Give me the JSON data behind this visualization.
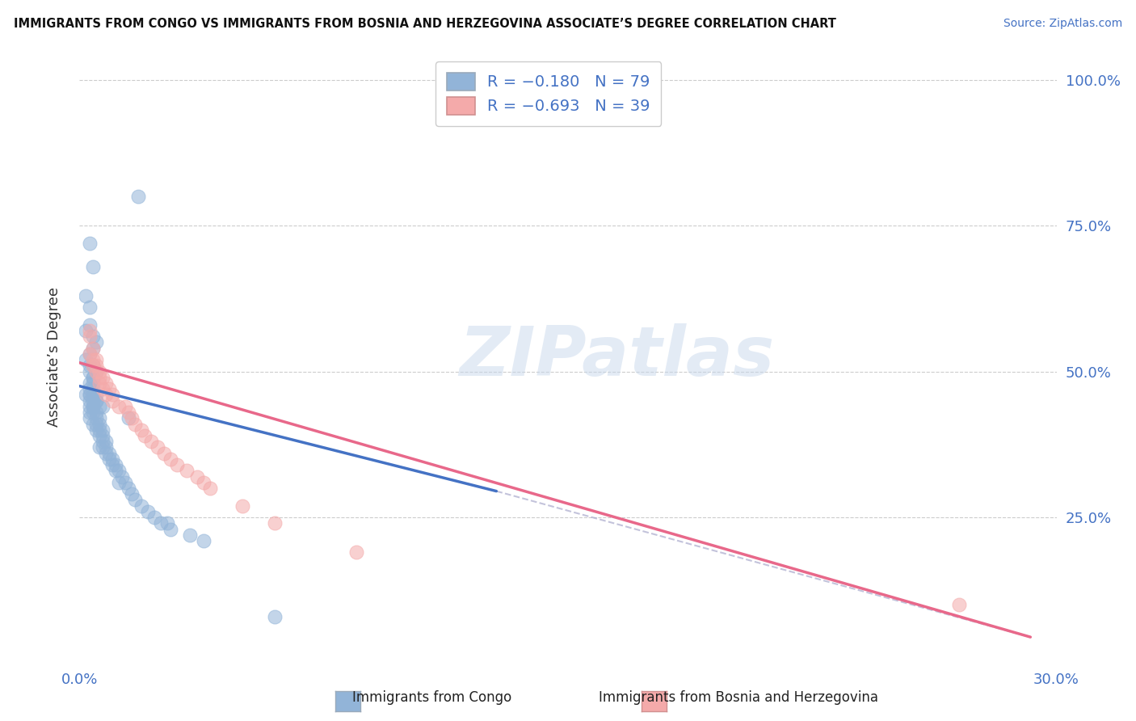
{
  "title": "IMMIGRANTS FROM CONGO VS IMMIGRANTS FROM BOSNIA AND HERZEGOVINA ASSOCIATE’S DEGREE CORRELATION CHART",
  "source": "Source: ZipAtlas.com",
  "ylabel": "Associate’s Degree",
  "xlim": [
    0.0,
    0.3
  ],
  "ylim": [
    0.0,
    1.05
  ],
  "ytick_positions": [
    0.25,
    0.5,
    0.75,
    1.0
  ],
  "ytick_labels": [
    "25.0%",
    "50.0%",
    "75.0%",
    "100.0%"
  ],
  "xtick_positions": [
    0.0,
    0.3
  ],
  "xtick_labels": [
    "0.0%",
    "30.0%"
  ],
  "legend1_label": "R = −0.180   N = 79",
  "legend2_label": "R = −0.693   N = 39",
  "legend_bottom1": "Immigrants from Congo",
  "legend_bottom2": "Immigrants from Bosnia and Herzegovina",
  "blue_color": "#92B4D8",
  "pink_color": "#F4AAAA",
  "blue_edge_color": "#7090C0",
  "pink_edge_color": "#E08888",
  "blue_line_color": "#4472C4",
  "pink_line_color": "#E8688A",
  "dash_color": "#AAAACC",
  "watermark_text": "ZIPatlas",
  "blue_scatter_x": [
    0.018,
    0.003,
    0.004,
    0.002,
    0.003,
    0.003,
    0.002,
    0.004,
    0.005,
    0.004,
    0.003,
    0.002,
    0.003,
    0.004,
    0.005,
    0.003,
    0.004,
    0.004,
    0.003,
    0.004,
    0.004,
    0.003,
    0.005,
    0.003,
    0.002,
    0.003,
    0.003,
    0.004,
    0.005,
    0.004,
    0.003,
    0.004,
    0.003,
    0.005,
    0.004,
    0.003,
    0.006,
    0.005,
    0.004,
    0.006,
    0.005,
    0.007,
    0.006,
    0.005,
    0.007,
    0.006,
    0.008,
    0.007,
    0.006,
    0.008,
    0.007,
    0.009,
    0.008,
    0.01,
    0.009,
    0.011,
    0.01,
    0.012,
    0.011,
    0.013,
    0.012,
    0.014,
    0.015,
    0.016,
    0.017,
    0.019,
    0.021,
    0.023,
    0.025,
    0.027,
    0.028,
    0.034,
    0.038,
    0.004,
    0.005,
    0.006,
    0.007,
    0.015,
    0.06
  ],
  "blue_scatter_y": [
    0.8,
    0.72,
    0.68,
    0.63,
    0.61,
    0.58,
    0.57,
    0.56,
    0.55,
    0.54,
    0.53,
    0.52,
    0.51,
    0.51,
    0.5,
    0.5,
    0.49,
    0.49,
    0.48,
    0.48,
    0.47,
    0.47,
    0.46,
    0.46,
    0.46,
    0.46,
    0.45,
    0.45,
    0.45,
    0.44,
    0.44,
    0.44,
    0.43,
    0.43,
    0.43,
    0.42,
    0.42,
    0.42,
    0.41,
    0.41,
    0.41,
    0.4,
    0.4,
    0.4,
    0.39,
    0.39,
    0.38,
    0.38,
    0.37,
    0.37,
    0.37,
    0.36,
    0.36,
    0.35,
    0.35,
    0.34,
    0.34,
    0.33,
    0.33,
    0.32,
    0.31,
    0.31,
    0.3,
    0.29,
    0.28,
    0.27,
    0.26,
    0.25,
    0.24,
    0.24,
    0.23,
    0.22,
    0.21,
    0.46,
    0.45,
    0.44,
    0.44,
    0.42,
    0.08
  ],
  "pink_scatter_x": [
    0.003,
    0.003,
    0.004,
    0.003,
    0.004,
    0.005,
    0.004,
    0.005,
    0.006,
    0.005,
    0.006,
    0.007,
    0.006,
    0.008,
    0.007,
    0.009,
    0.008,
    0.01,
    0.01,
    0.012,
    0.014,
    0.015,
    0.016,
    0.017,
    0.019,
    0.02,
    0.022,
    0.024,
    0.026,
    0.028,
    0.03,
    0.033,
    0.036,
    0.038,
    0.04,
    0.05,
    0.06,
    0.085,
    0.27
  ],
  "pink_scatter_y": [
    0.57,
    0.56,
    0.54,
    0.53,
    0.52,
    0.52,
    0.51,
    0.51,
    0.5,
    0.5,
    0.49,
    0.49,
    0.48,
    0.48,
    0.47,
    0.47,
    0.46,
    0.46,
    0.45,
    0.44,
    0.44,
    0.43,
    0.42,
    0.41,
    0.4,
    0.39,
    0.38,
    0.37,
    0.36,
    0.35,
    0.34,
    0.33,
    0.32,
    0.31,
    0.3,
    0.27,
    0.24,
    0.19,
    0.1
  ],
  "blue_line_x": [
    0.0,
    0.128
  ],
  "blue_line_y": [
    0.475,
    0.295
  ],
  "pink_line_x": [
    0.0,
    0.292
  ],
  "pink_line_y": [
    0.515,
    0.045
  ],
  "dash_line_x": [
    0.128,
    0.292
  ],
  "dash_line_y": [
    0.295,
    0.045
  ]
}
